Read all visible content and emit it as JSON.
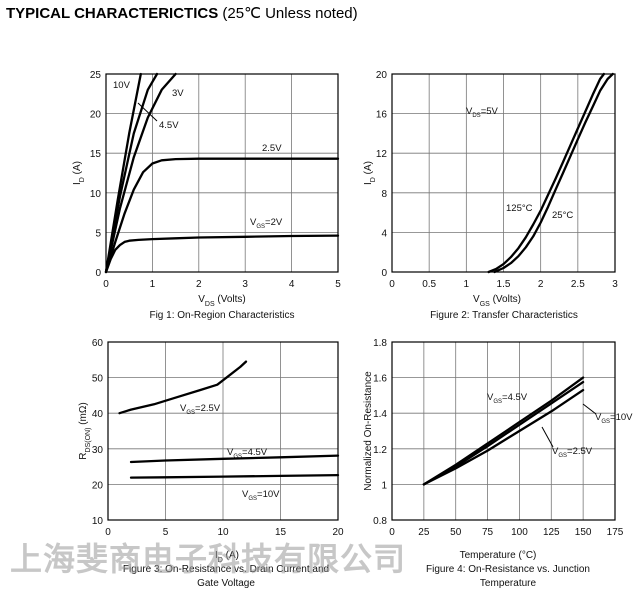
{
  "heading": {
    "title": "TYPICAL CHARACTERICTICS",
    "note": "(25℃ Unless noted)"
  },
  "watermark": "上海斐商电子科技有限公司",
  "chart_data": [
    {
      "type": "line",
      "caption": "Fig 1: On-Region Characteristics",
      "xlabel": "V_DS (Volts)",
      "ylabel": "I_D (A)",
      "xlim": [
        0,
        5
      ],
      "ylim": [
        0,
        25
      ],
      "xticks": [
        0,
        1,
        2,
        3,
        4,
        5
      ],
      "yticks": [
        0,
        5,
        10,
        15,
        20,
        25
      ],
      "grid": true,
      "series": [
        {
          "name": "V_GS=2V",
          "x": [
            0,
            0.1,
            0.2,
            0.3,
            0.4,
            0.5,
            0.7,
            1.0,
            1.5,
            2,
            3,
            4,
            5
          ],
          "y": [
            0,
            1.6,
            2.8,
            3.4,
            3.8,
            3.95,
            4.05,
            4.15,
            4.25,
            4.35,
            4.45,
            4.55,
            4.6
          ]
        },
        {
          "name": "2.5V",
          "x": [
            0,
            0.2,
            0.4,
            0.6,
            0.8,
            1.0,
            1.2,
            1.5,
            2,
            3,
            4,
            5
          ],
          "y": [
            0,
            3.8,
            7.4,
            10.4,
            12.6,
            13.7,
            14.1,
            14.25,
            14.3,
            14.3,
            14.3,
            14.3
          ]
        },
        {
          "name": "3V",
          "x": [
            0,
            0.3,
            0.6,
            0.9,
            1.2,
            1.5
          ],
          "y": [
            0,
            8,
            14.5,
            19.5,
            23,
            25
          ]
        },
        {
          "name": "4.5V",
          "x": [
            0,
            0.3,
            0.6,
            0.9,
            1.1
          ],
          "y": [
            0,
            9.5,
            17.5,
            23,
            25
          ]
        },
        {
          "name": "10V",
          "x": [
            0,
            0.25,
            0.5,
            0.75
          ],
          "y": [
            0,
            9,
            17.5,
            25
          ]
        }
      ],
      "annotations": [
        "10V",
        "3V",
        "4.5V",
        "2.5V",
        "V_GS=2V"
      ]
    },
    {
      "type": "line",
      "caption": "Figure 2: Transfer Characteristics",
      "xlabel": "V_GS (Volts)",
      "ylabel": "I_D (A)",
      "xlim": [
        0,
        3
      ],
      "ylim": [
        0,
        20
      ],
      "xticks": [
        0,
        0.5,
        1,
        1.5,
        2,
        2.5,
        3
      ],
      "yticks": [
        0,
        4,
        8,
        12,
        16,
        20
      ],
      "grid": true,
      "series": [
        {
          "name": "125°C",
          "x": [
            1.3,
            1.4,
            1.5,
            1.6,
            1.7,
            1.8,
            1.9,
            2.0,
            2.1,
            2.2,
            2.3,
            2.4,
            2.5,
            2.6,
            2.7,
            2.8,
            2.85
          ],
          "y": [
            0,
            0.3,
            0.8,
            1.5,
            2.4,
            3.5,
            4.8,
            6.2,
            7.8,
            9.4,
            11.1,
            12.8,
            14.5,
            16.2,
            17.9,
            19.5,
            20
          ]
        },
        {
          "name": "25°C",
          "x": [
            1.38,
            1.5,
            1.6,
            1.7,
            1.8,
            1.9,
            2.0,
            2.1,
            2.2,
            2.3,
            2.4,
            2.5,
            2.6,
            2.7,
            2.8,
            2.9,
            2.97
          ],
          "y": [
            0,
            0.4,
            0.9,
            1.6,
            2.5,
            3.6,
            5.0,
            6.6,
            8.3,
            10.0,
            11.7,
            13.4,
            15.1,
            16.7,
            18.3,
            19.5,
            20
          ]
        }
      ],
      "annotations": [
        "V_DS=5V",
        "125°C",
        "25°C"
      ]
    },
    {
      "type": "line",
      "caption": [
        "Figure 3: On-Resistance vs. Drain Current and",
        "Gate Voltage"
      ],
      "xlabel": "I_D (A)",
      "ylabel": "R_DS(ON) (mΩ)",
      "xlim": [
        0,
        20
      ],
      "ylim": [
        10,
        60
      ],
      "xticks": [
        0,
        5,
        10,
        15,
        20
      ],
      "yticks": [
        10,
        20,
        30,
        40,
        50,
        60
      ],
      "grid": true,
      "series": [
        {
          "name": "V_GS=2.5V",
          "x": [
            1,
            2,
            4,
            6,
            8,
            9.5,
            10.5,
            11.5,
            12
          ],
          "y": [
            40,
            41,
            42.5,
            44.5,
            46.5,
            48,
            50.5,
            53,
            54.5
          ]
        },
        {
          "name": "V_GS=4.5V",
          "x": [
            2,
            5,
            10,
            15,
            20
          ],
          "y": [
            26.3,
            26.7,
            27.2,
            27.6,
            28.1
          ]
        },
        {
          "name": "V_GS=10V",
          "x": [
            2,
            5,
            10,
            15,
            20
          ],
          "y": [
            21.9,
            22.0,
            22.2,
            22.4,
            22.6
          ]
        }
      ],
      "annotations": [
        "V_GS=2.5V",
        "V_GS=4.5V",
        "V_GS=10V"
      ]
    },
    {
      "type": "line",
      "caption": [
        "Figure 4: On-Resistance vs. Junction",
        "Temperature"
      ],
      "xlabel": "Temperature (°C)",
      "ylabel": "Normalized On-Resistance",
      "xlim": [
        0,
        175
      ],
      "ylim": [
        0.8,
        1.8
      ],
      "xticks": [
        0,
        25,
        50,
        75,
        100,
        125,
        150,
        175
      ],
      "yticks": [
        0.8,
        1,
        1.2,
        1.4,
        1.6,
        1.8
      ],
      "grid": true,
      "series": [
        {
          "name": "V_GS=4.5V",
          "x": [
            25,
            50,
            75,
            100,
            125,
            150
          ],
          "y": [
            1.0,
            1.11,
            1.23,
            1.35,
            1.47,
            1.6
          ]
        },
        {
          "name": "V_GS=10V",
          "x": [
            25,
            50,
            75,
            100,
            125,
            150
          ],
          "y": [
            1.0,
            1.1,
            1.215,
            1.335,
            1.455,
            1.575
          ]
        },
        {
          "name": "V_GS=2.5V",
          "x": [
            25,
            50,
            75,
            100,
            125,
            150
          ],
          "y": [
            1.0,
            1.09,
            1.19,
            1.3,
            1.41,
            1.53
          ]
        }
      ],
      "annotations": [
        "V_GS=4.5V",
        "V_GS=10V",
        "V_GS=2.5V"
      ]
    }
  ]
}
